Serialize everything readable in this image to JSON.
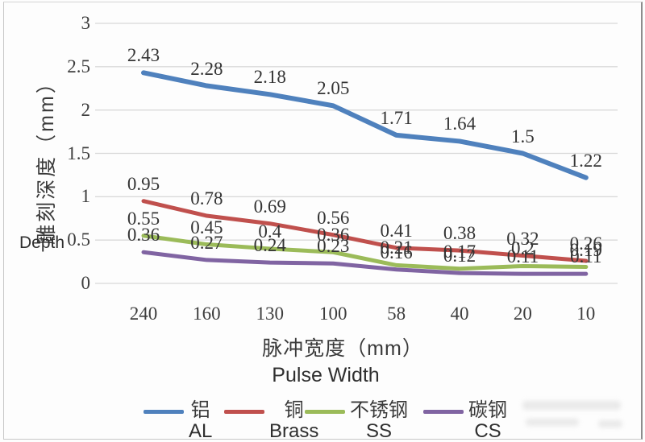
{
  "colors": {
    "gridline": "#d9d9d9",
    "al_blue": "#4F81BD",
    "brass_red": "#C0504D",
    "ss_green": "#9BBB59",
    "cs_purple": "#8064A2",
    "text": "#3a3a3a"
  },
  "y_axis": {
    "title_cjk": "雕刻深度（mm）",
    "title_en": "Depth",
    "tick_labels": [
      "3",
      "2.5",
      "2",
      "1.5",
      "1",
      "0.5",
      "0"
    ]
  },
  "x_axis": {
    "title_cjk": "脉冲宽度（mm）",
    "title_en": "Pulse Width",
    "tick_labels": [
      "240",
      "160",
      "130",
      "100",
      "58",
      "40",
      "20",
      "10"
    ]
  },
  "legend": {
    "items": [
      {
        "label": "铝",
        "sublabel": "AL",
        "color": "#4F81BD"
      },
      {
        "label": "铜",
        "sublabel": "Brass",
        "color": "#C0504D"
      },
      {
        "label": "不锈钢",
        "sublabel": "SS",
        "color": "#9BBB59"
      },
      {
        "label": "碳钢",
        "sublabel": "CS",
        "color": "#8064A2"
      }
    ]
  },
  "chart_data": {
    "type": "line",
    "title": "",
    "xlabel": "脉冲宽度（mm） / Pulse Width",
    "ylabel": "雕刻深度（mm） / Depth",
    "categories": [
      "240",
      "160",
      "130",
      "100",
      "58",
      "40",
      "20",
      "10"
    ],
    "series": [
      {
        "name": "铝",
        "latin": "AL",
        "color": "#4F81BD",
        "values": [
          2.43,
          2.28,
          2.18,
          2.05,
          1.71,
          1.64,
          1.5,
          1.22
        ]
      },
      {
        "name": "铜",
        "latin": "Brass",
        "color": "#C0504D",
        "values": [
          0.95,
          0.78,
          0.69,
          0.56,
          0.41,
          0.38,
          0.32,
          0.26
        ]
      },
      {
        "name": "不锈钢",
        "latin": "SS",
        "color": "#9BBB59",
        "values": [
          0.55,
          0.45,
          0.4,
          0.36,
          0.21,
          0.17,
          0.2,
          0.19
        ]
      },
      {
        "name": "碳钢",
        "latin": "CS",
        "color": "#8064A2",
        "values": [
          0.36,
          0.27,
          0.24,
          0.23,
          0.16,
          0.12,
          0.11,
          0.11
        ]
      }
    ],
    "ylim": [
      0,
      3
    ],
    "y_ticks": [
      3,
      2.5,
      2,
      1.5,
      1,
      0.5,
      0
    ],
    "grid": true,
    "data_labels": true,
    "legend_position": "bottom"
  }
}
